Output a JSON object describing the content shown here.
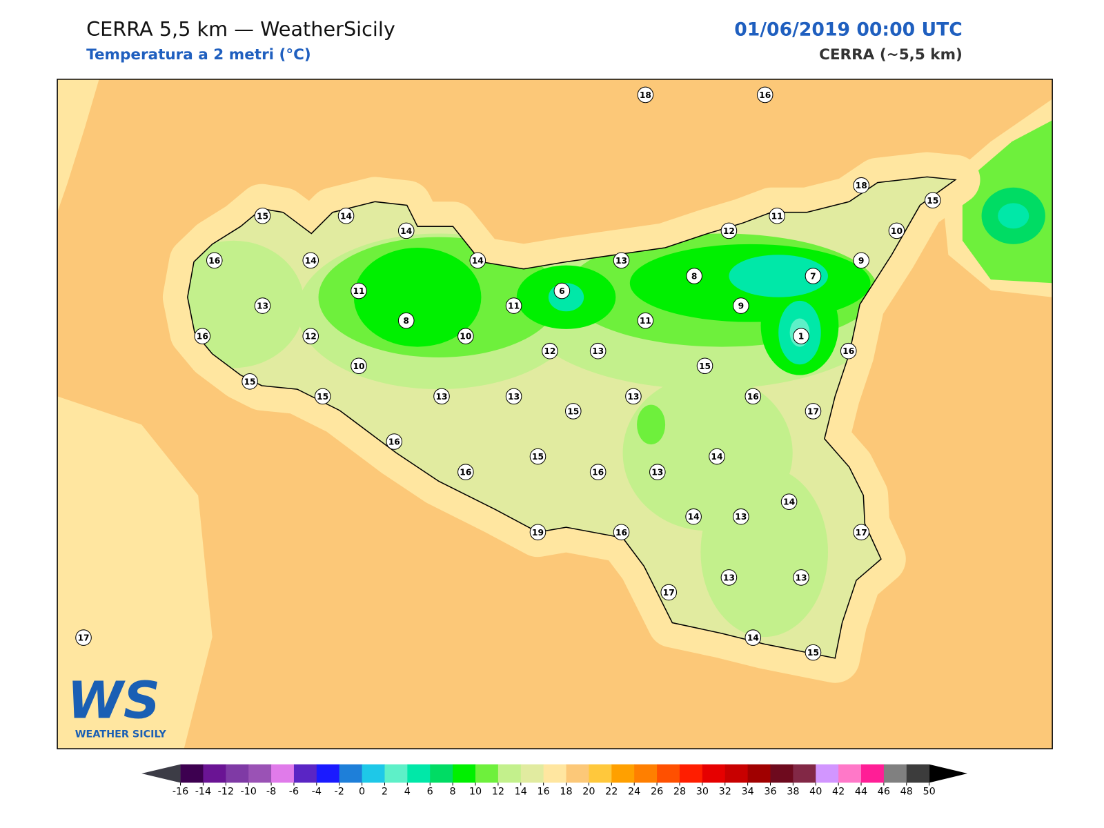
{
  "header": {
    "title": "CERRA 5,5 km — WeatherSicily",
    "subtitle": "Temperatura a 2 metri (°C)",
    "datetime": "01/06/2019 00:00 UTC",
    "model": "CERRA (~5,5 km)"
  },
  "stations": [
    18,
    16,
    18,
    15,
    15,
    14,
    14,
    12,
    11,
    10,
    16,
    14,
    14,
    13,
    8,
    7,
    9,
    6,
    11,
    13,
    11,
    9,
    11,
    8,
    16,
    12,
    10,
    1,
    16,
    12,
    13,
    10,
    15,
    15,
    15,
    13,
    13,
    13,
    16,
    15,
    17,
    16,
    14,
    15,
    16,
    16,
    13,
    14,
    14,
    13,
    19,
    16,
    17,
    17,
    13,
    13,
    17,
    14,
    15
  ],
  "colorbar": {
    "ticks": [
      -16,
      -14,
      -12,
      -10,
      -8,
      -6,
      -4,
      -2,
      0,
      2,
      4,
      6,
      8,
      10,
      12,
      14,
      16,
      18,
      20,
      22,
      24,
      26,
      28,
      30,
      32,
      34,
      36,
      38,
      40,
      42,
      44,
      46,
      48,
      50
    ],
    "colors": [
      "#3d0050",
      "#6a1494",
      "#7f3aa5",
      "#9a52b5",
      "#e07bea",
      "#5a25c4",
      "#1a1aff",
      "#1e7fd9",
      "#1ec8e8",
      "#5ef0c8",
      "#00e8a8",
      "#00dc64",
      "#00f000",
      "#6ef03c",
      "#c3f08c",
      "#e1eba0",
      "#ffe6a0",
      "#fcc878",
      "#ffc83c",
      "#ffa000",
      "#ff7f00",
      "#ff5000",
      "#ff1e00",
      "#e60000",
      "#c80000",
      "#a00000",
      "#6e0a1e",
      "#822846",
      "#d296ff",
      "#ff78c8",
      "#ff1e96",
      "#808080",
      "#3c3c3c"
    ],
    "under": "#3c3c46",
    "over": "#000000"
  },
  "logo": {
    "mark": "WS",
    "caption": "WEATHER SICILY"
  }
}
